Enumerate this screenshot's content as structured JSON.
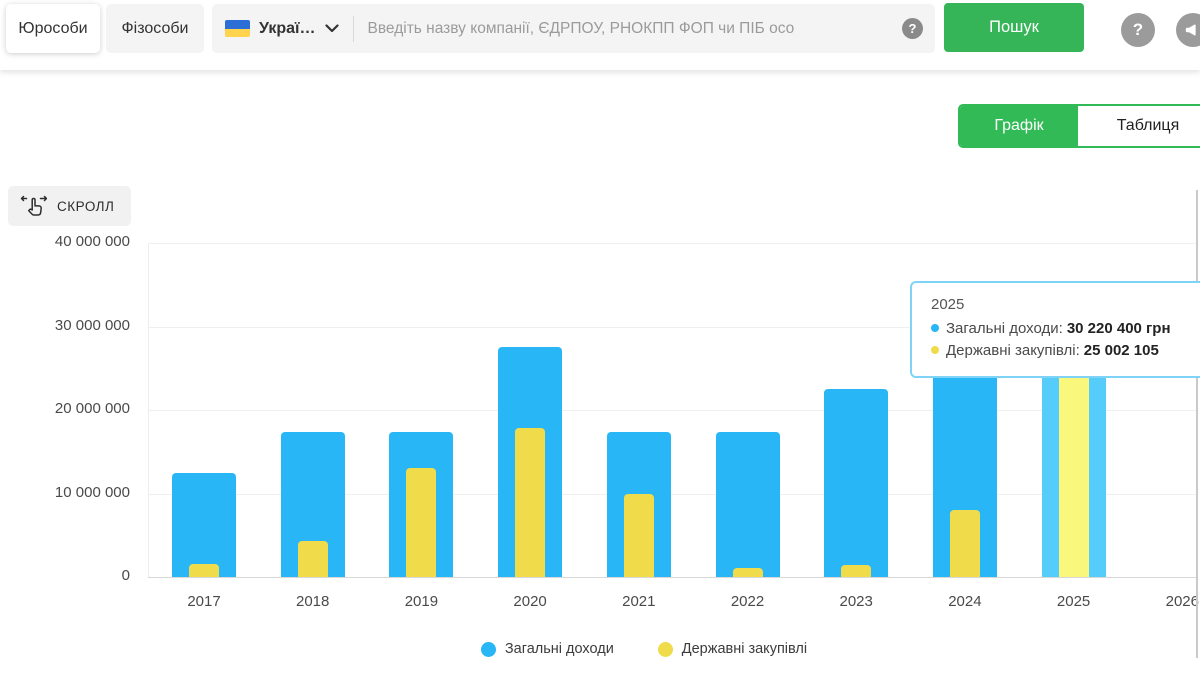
{
  "header": {
    "tabs": [
      "Юрособи",
      "Фізособи"
    ],
    "language_label": "Украї…",
    "search_placeholder": "Введіть назву компанії, ЄДРПОУ, РНОКПП ФОП чи ПІБ осо",
    "search_button": "Пошук"
  },
  "icons": {
    "help_glyph": "?",
    "search_help_glyph": "?"
  },
  "view_tabs": [
    {
      "label": "Графік",
      "active": true
    },
    {
      "label": "Таблиця",
      "active": false
    }
  ],
  "scroll_hint": "СКРОЛЛ",
  "chart_data": {
    "type": "bar",
    "title": "",
    "xlabel": "",
    "ylabel": "",
    "categories": [
      "2017",
      "2018",
      "2019",
      "2020",
      "2021",
      "2022",
      "2023",
      "2024",
      "2025",
      "2026"
    ],
    "series": [
      {
        "name": "Загальні доходи",
        "color": "#29b6f6",
        "hover_color": "#55ccf9",
        "values": [
          12500000,
          17400000,
          17400000,
          27500000,
          17400000,
          17400000,
          22500000,
          30000000,
          30220400,
          null
        ]
      },
      {
        "name": "Державні закупівлі",
        "color": "#f0dc4a",
        "hover_color": "#faf77d",
        "values": [
          1500000,
          4300000,
          13100000,
          17800000,
          9900000,
          1100000,
          1400000,
          8000000,
          25002105,
          null
        ]
      }
    ],
    "ylim": [
      0,
      40000000
    ],
    "yticks": [
      {
        "value": 0,
        "label": "0"
      },
      {
        "value": 10000000,
        "label": "10 000 000"
      },
      {
        "value": 20000000,
        "label": "20 000 000"
      },
      {
        "value": 30000000,
        "label": "30 000 000"
      },
      {
        "value": 40000000,
        "label": "40 000 000"
      }
    ],
    "grid": true,
    "legend_position": "bottom",
    "highlight_index": 8,
    "tooltip": {
      "title": "2025",
      "rows": [
        {
          "label": "Загальні доходи:",
          "value": "30 220 400 грн"
        },
        {
          "label": "Державні закупівлі:",
          "value": "25 002 105"
        }
      ]
    }
  }
}
